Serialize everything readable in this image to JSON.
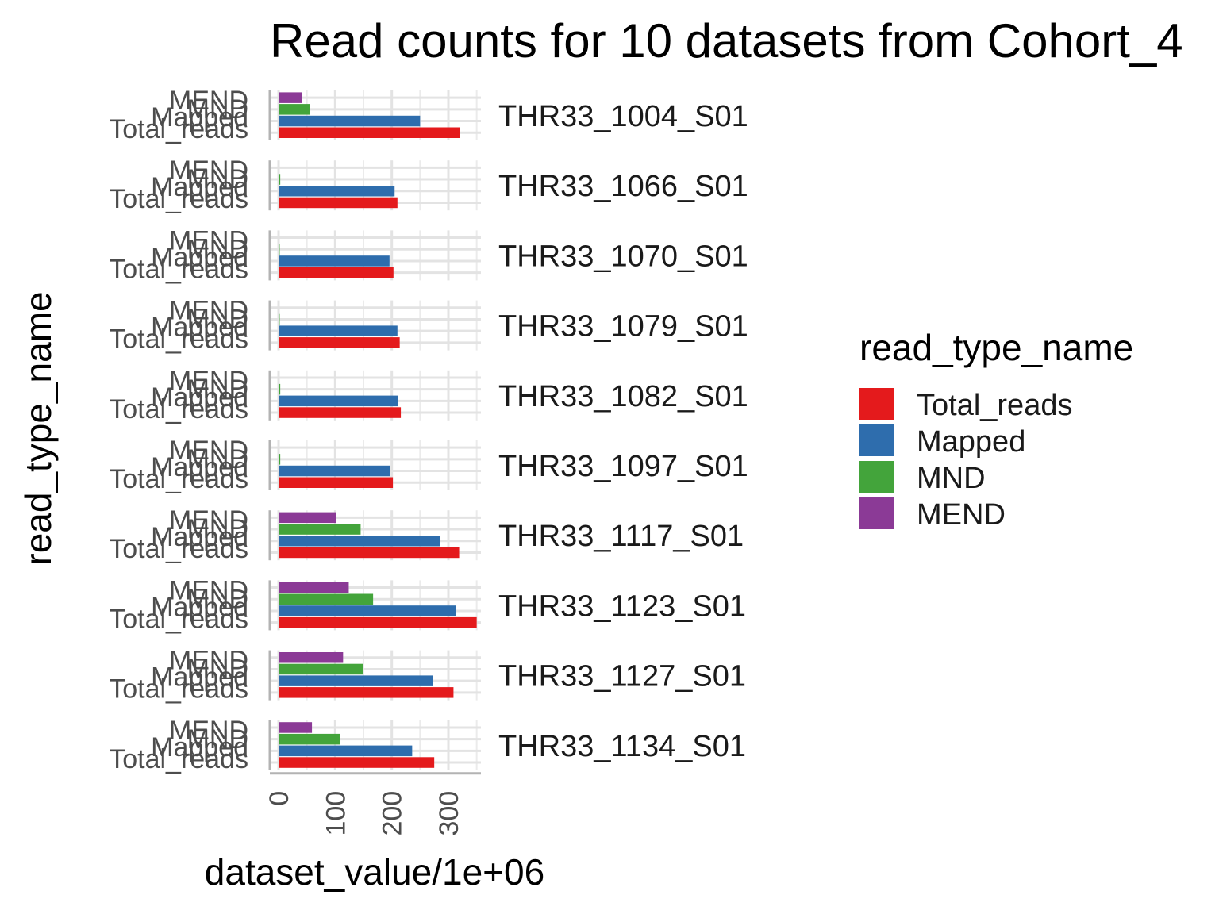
{
  "chart_data": {
    "type": "bar",
    "orientation": "horizontal",
    "title": "Read counts for 10 datasets from Cohort_4",
    "xlabel": "dataset_value/1e+06",
    "ylabel": "read_type_name",
    "xlim": [
      0,
      360
    ],
    "x_ticks": [
      "0",
      "100",
      "200",
      "300"
    ],
    "grid": true,
    "legend_position": "right",
    "legend_title": "read_type_name",
    "categories": [
      "Total_reads",
      "Mapped",
      "MND",
      "MEND"
    ],
    "colors": {
      "Total_reads": "#E41A1C",
      "Mapped": "#2E6DAD",
      "MND": "#43A43B",
      "MEND": "#8B3A96"
    },
    "panels": [
      {
        "name": "THR33_1004_S01",
        "values": {
          "Total_reads": 320,
          "Mapped": 250,
          "MND": 55,
          "MEND": 41
        }
      },
      {
        "name": "THR33_1066_S01",
        "values": {
          "Total_reads": 210,
          "Mapped": 205,
          "MND": 3,
          "MEND": 1
        }
      },
      {
        "name": "THR33_1070_S01",
        "values": {
          "Total_reads": 203,
          "Mapped": 196,
          "MND": 2,
          "MEND": 0.5
        }
      },
      {
        "name": "THR33_1079_S01",
        "values": {
          "Total_reads": 214,
          "Mapped": 210,
          "MND": 2,
          "MEND": 0.5
        }
      },
      {
        "name": "THR33_1082_S01",
        "values": {
          "Total_reads": 216,
          "Mapped": 211,
          "MND": 3,
          "MEND": 1
        }
      },
      {
        "name": "THR33_1097_S01",
        "values": {
          "Total_reads": 202,
          "Mapped": 197,
          "MND": 3,
          "MEND": 1
        }
      },
      {
        "name": "THR33_1117_S01",
        "values": {
          "Total_reads": 319,
          "Mapped": 285,
          "MND": 145,
          "MEND": 102
        }
      },
      {
        "name": "THR33_1123_S01",
        "values": {
          "Total_reads": 350,
          "Mapped": 313,
          "MND": 167,
          "MEND": 124
        }
      },
      {
        "name": "THR33_1127_S01",
        "values": {
          "Total_reads": 309,
          "Mapped": 273,
          "MND": 150,
          "MEND": 114
        }
      },
      {
        "name": "THR33_1134_S01",
        "values": {
          "Total_reads": 275,
          "Mapped": 236,
          "MND": 109,
          "MEND": 59
        }
      }
    ]
  }
}
